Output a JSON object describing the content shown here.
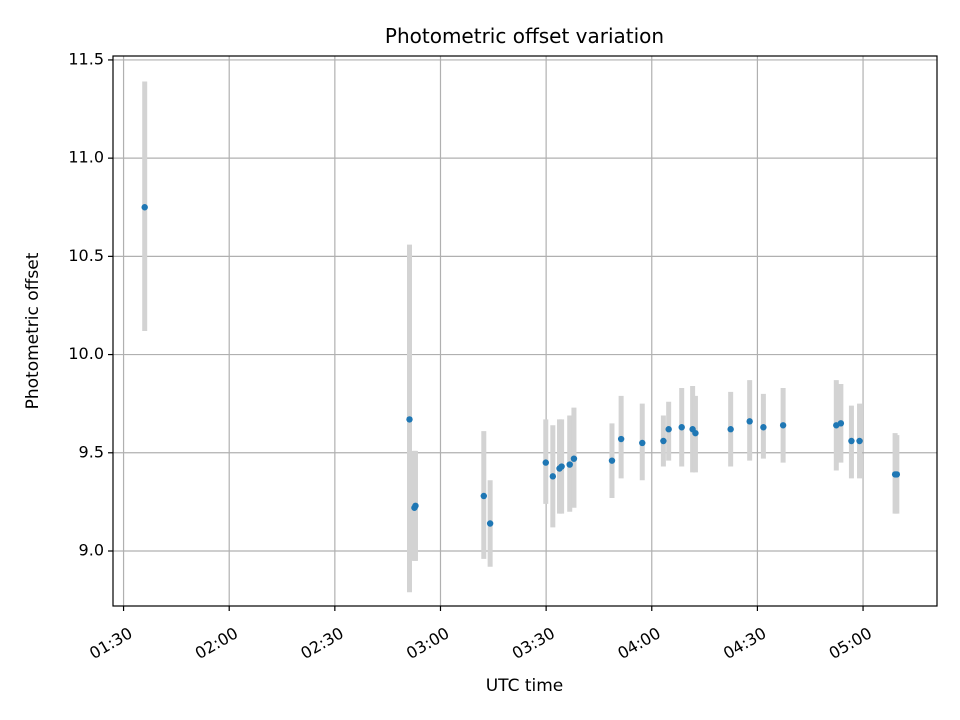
{
  "chart_data": {
    "type": "scatter",
    "title": "Photometric offset variation",
    "xlabel": "UTC time",
    "ylabel": "Photometric offset",
    "grid": true,
    "xlim_minutes": [
      87,
      321
    ],
    "ylim": [
      8.72,
      11.52
    ],
    "x_ticks": [
      {
        "minutes": 90,
        "label": "01:30"
      },
      {
        "minutes": 120,
        "label": "02:00"
      },
      {
        "minutes": 150,
        "label": "02:30"
      },
      {
        "minutes": 180,
        "label": "03:00"
      },
      {
        "minutes": 210,
        "label": "03:30"
      },
      {
        "minutes": 240,
        "label": "04:00"
      },
      {
        "minutes": 270,
        "label": "04:30"
      },
      {
        "minutes": 300,
        "label": "05:00"
      }
    ],
    "y_ticks": [
      {
        "value": 9.0,
        "label": "9.0"
      },
      {
        "value": 9.5,
        "label": "9.5"
      },
      {
        "value": 10.0,
        "label": "10.0"
      },
      {
        "value": 10.5,
        "label": "10.5"
      },
      {
        "value": 11.0,
        "label": "11.0"
      },
      {
        "value": 11.5,
        "label": "11.5"
      }
    ],
    "point_color": "#1f77b4",
    "errorbar_color": "#d3d3d3",
    "points": [
      {
        "t": 96.0,
        "y": 10.75,
        "err_low": 10.12,
        "err_high": 11.39
      },
      {
        "t": 171.2,
        "y": 9.67,
        "err_low": 8.79,
        "err_high": 10.56
      },
      {
        "t": 172.6,
        "y": 9.22,
        "err_low": 8.95,
        "err_high": 9.51
      },
      {
        "t": 172.9,
        "y": 9.23,
        "err_low": 8.95,
        "err_high": 9.51
      },
      {
        "t": 192.3,
        "y": 9.28,
        "err_low": 8.96,
        "err_high": 9.61
      },
      {
        "t": 194.1,
        "y": 9.14,
        "err_low": 8.92,
        "err_high": 9.36
      },
      {
        "t": 209.9,
        "y": 9.45,
        "err_low": 9.24,
        "err_high": 9.67
      },
      {
        "t": 211.9,
        "y": 9.38,
        "err_low": 9.12,
        "err_high": 9.64
      },
      {
        "t": 213.8,
        "y": 9.42,
        "err_low": 9.19,
        "err_high": 9.67
      },
      {
        "t": 214.4,
        "y": 9.43,
        "err_low": 9.19,
        "err_high": 9.67
      },
      {
        "t": 216.7,
        "y": 9.44,
        "err_low": 9.2,
        "err_high": 9.69
      },
      {
        "t": 217.9,
        "y": 9.47,
        "err_low": 9.22,
        "err_high": 9.73
      },
      {
        "t": 228.7,
        "y": 9.46,
        "err_low": 9.27,
        "err_high": 9.65
      },
      {
        "t": 231.3,
        "y": 9.57,
        "err_low": 9.37,
        "err_high": 9.79
      },
      {
        "t": 237.3,
        "y": 9.55,
        "err_low": 9.36,
        "err_high": 9.75
      },
      {
        "t": 243.3,
        "y": 9.56,
        "err_low": 9.43,
        "err_high": 9.69
      },
      {
        "t": 244.8,
        "y": 9.62,
        "err_low": 9.46,
        "err_high": 9.76
      },
      {
        "t": 248.5,
        "y": 9.63,
        "err_low": 9.43,
        "err_high": 9.83
      },
      {
        "t": 251.6,
        "y": 9.62,
        "err_low": 9.4,
        "err_high": 9.84
      },
      {
        "t": 252.4,
        "y": 9.6,
        "err_low": 9.4,
        "err_high": 9.79
      },
      {
        "t": 262.4,
        "y": 9.62,
        "err_low": 9.43,
        "err_high": 9.81
      },
      {
        "t": 267.8,
        "y": 9.66,
        "err_low": 9.46,
        "err_high": 9.87
      },
      {
        "t": 271.7,
        "y": 9.63,
        "err_low": 9.47,
        "err_high": 9.8
      },
      {
        "t": 277.3,
        "y": 9.64,
        "err_low": 9.45,
        "err_high": 9.83
      },
      {
        "t": 292.4,
        "y": 9.64,
        "err_low": 9.41,
        "err_high": 9.87
      },
      {
        "t": 293.7,
        "y": 9.65,
        "err_low": 9.45,
        "err_high": 9.85
      },
      {
        "t": 296.7,
        "y": 9.56,
        "err_low": 9.37,
        "err_high": 9.74
      },
      {
        "t": 299.0,
        "y": 9.56,
        "err_low": 9.37,
        "err_high": 9.75
      },
      {
        "t": 309.1,
        "y": 9.39,
        "err_low": 9.19,
        "err_high": 9.6
      },
      {
        "t": 309.6,
        "y": 9.39,
        "err_low": 9.19,
        "err_high": 9.59
      }
    ]
  }
}
